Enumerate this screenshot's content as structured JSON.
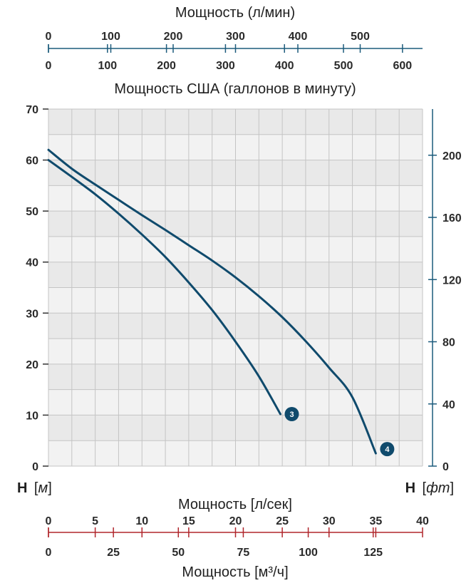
{
  "chart_data": {
    "type": "line",
    "top_axis_1": {
      "label": "Мощность (л/мин)",
      "ticks": [
        "0",
        "100",
        "200",
        "300",
        "400",
        "500"
      ],
      "values": [
        0,
        100,
        200,
        300,
        400,
        500
      ],
      "max": 600,
      "color": "#1c5b7c"
    },
    "top_axis_2": {
      "label": "Мощность США (галлонов в минуту)",
      "ticks": [
        "0",
        "100",
        "200",
        "300",
        "400",
        "500",
        "600"
      ],
      "values": [
        0,
        100,
        200,
        300,
        400,
        500,
        600
      ],
      "max": 158.5
    },
    "y_left": {
      "label_letter": "H",
      "label_unit": "м",
      "ticks": [
        "0",
        "10",
        "20",
        "30",
        "40",
        "50",
        "60",
        "70"
      ],
      "values": [
        0,
        10,
        20,
        30,
        40,
        50,
        60,
        70
      ],
      "ylim": [
        0,
        70
      ]
    },
    "y_right": {
      "label_letter": "H",
      "label_unit": "фт",
      "ticks": [
        "0",
        "40",
        "80",
        "120",
        "160",
        "200"
      ],
      "values": [
        0,
        40,
        80,
        120,
        160,
        200
      ],
      "ylim": [
        0,
        229.7
      ],
      "color": "#1c5b7c"
    },
    "x_bottom_1": {
      "label": "Мощность [л/сек]",
      "ticks": [
        "0",
        "5",
        "10",
        "15",
        "20",
        "25",
        "30",
        "35",
        "40"
      ],
      "values": [
        0,
        5,
        10,
        15,
        20,
        25,
        30,
        35,
        40
      ],
      "xlim": [
        0,
        40
      ],
      "color": "#b0262c"
    },
    "x_bottom_2": {
      "label": "Мощность [м³/ч]",
      "ticks": [
        "0",
        "25",
        "50",
        "75",
        "100",
        "125"
      ],
      "values": [
        0,
        25,
        50,
        75,
        100,
        125
      ],
      "max": 144
    },
    "series": [
      {
        "badge": "3",
        "x": [
          0,
          2.5,
          5,
          7.5,
          10,
          12.5,
          15,
          17.5,
          20,
          22.5,
          24.8
        ],
        "y": [
          60,
          56.7,
          53.3,
          49.5,
          45.4,
          41,
          36,
          30.6,
          24.4,
          17.6,
          10.2
        ]
      },
      {
        "badge": "4",
        "x": [
          0,
          2.5,
          5,
          7.5,
          10,
          12.5,
          15,
          17.5,
          20,
          22.5,
          25,
          27.5,
          30,
          32.5,
          35
        ],
        "y": [
          62,
          58.3,
          55.2,
          52.2,
          49.2,
          46.3,
          43.3,
          40.3,
          37,
          33.3,
          29.2,
          24.5,
          19.3,
          13.5,
          2.5
        ]
      }
    ],
    "colors": {
      "line": "#0f4a6c",
      "badge": "#0f4a6c",
      "plot_bg": "#e9e9e9",
      "grid": "#c4c4c4",
      "axis": "#1c5b7c",
      "bottom_axis": "#b0262c"
    }
  }
}
